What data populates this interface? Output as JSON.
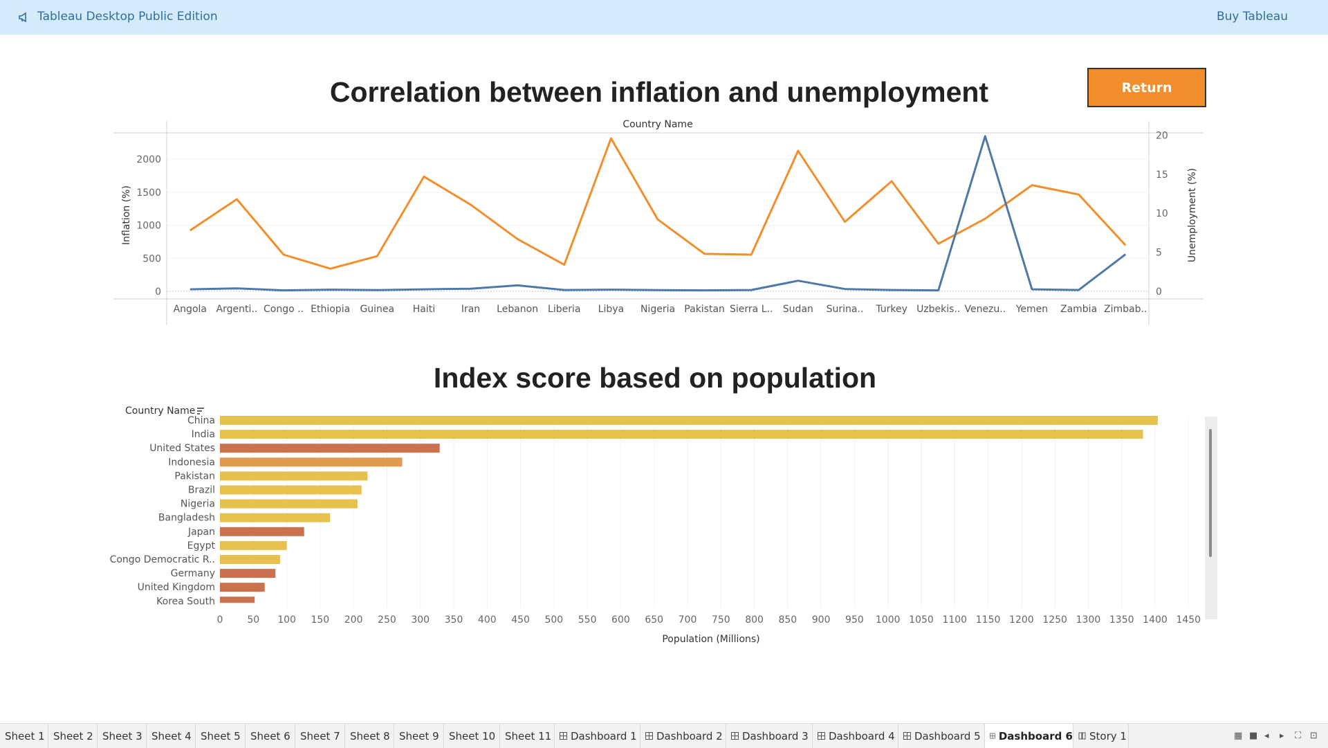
{
  "topbar": {
    "icon": "megaphone-icon",
    "title": "Tableau Desktop Public Edition",
    "buy_label": "Buy Tableau",
    "background": "#d4ebfc"
  },
  "return_button": {
    "label": "Return",
    "color": "#f28e2b"
  },
  "chart1": {
    "title": "Correlation between inflation and unemployment",
    "header": "Country Name"
  },
  "chart2": {
    "title": "Index score based on population",
    "header": "Country Name",
    "xlabel": "Population (Millions)"
  },
  "chart_data": [
    {
      "type": "line",
      "title": "Correlation between inflation and unemployment",
      "header": "Country Name",
      "categories": [
        "Angola",
        "Argenti..",
        "Congo ..",
        "Ethiopia",
        "Guinea",
        "Haiti",
        "Iran",
        "Lebanon",
        "Liberia",
        "Libya",
        "Nigeria",
        "Pakistan",
        "Sierra L..",
        "Sudan",
        "Surina..",
        "Turkey",
        "Uzbekis..",
        "Venezu..",
        "Yemen",
        "Zambia",
        "Zimbab.."
      ],
      "series": [
        {
          "name": "Unemployment (%)",
          "axis": "right",
          "color": "#f28e2b",
          "values": [
            7.8,
            11.8,
            4.7,
            2.9,
            4.5,
            14.7,
            11.1,
            6.7,
            3.4,
            19.6,
            9.2,
            4.8,
            4.7,
            18.0,
            8.9,
            14.1,
            6.1,
            9.3,
            13.6,
            12.4,
            5.9
          ]
        },
        {
          "name": "Inflation (%)",
          "axis": "left",
          "color": "#4e79a7",
          "values": [
            30,
            45,
            15,
            25,
            18,
            30,
            40,
            90,
            20,
            25,
            18,
            15,
            20,
            160,
            35,
            20,
            15,
            2350,
            30,
            20,
            560
          ]
        }
      ],
      "y_left": {
        "label": "Inflation (%)",
        "range": [
          0,
          2400
        ],
        "ticks": [
          0,
          500,
          1000,
          1500,
          2000
        ]
      },
      "y_right": {
        "label": "Unemployment (%)",
        "range": [
          0,
          20.3
        ],
        "ticks": [
          0,
          5,
          10,
          15,
          20
        ]
      },
      "grid": true
    },
    {
      "type": "bar",
      "orientation": "horizontal",
      "title": "Index score based on population",
      "header": "Country Name",
      "xlabel": "Population (Millions)",
      "xlim": [
        0,
        1470
      ],
      "xticks": [
        0,
        50,
        100,
        150,
        200,
        250,
        300,
        350,
        400,
        450,
        500,
        550,
        600,
        650,
        700,
        750,
        800,
        850,
        900,
        950,
        1000,
        1050,
        1100,
        1150,
        1200,
        1250,
        1300,
        1350,
        1400,
        1450
      ],
      "categories": [
        "China",
        "India",
        "United States",
        "Indonesia",
        "Pakistan",
        "Brazil",
        "Nigeria",
        "Bangladesh",
        "Japan",
        "Egypt",
        "Congo Democratic R..",
        "Germany",
        "United Kingdom",
        "Korea South"
      ],
      "values": [
        1404,
        1382,
        329,
        273,
        221,
        212,
        206,
        165,
        126,
        100,
        90,
        83,
        67,
        52
      ],
      "colors": [
        "#e6c14e",
        "#e6c14e",
        "#c9724d",
        "#e09b50",
        "#e6c14e",
        "#e6c14e",
        "#e6c14e",
        "#e6c14e",
        "#c9724d",
        "#e6c14e",
        "#e6c14e",
        "#c9724d",
        "#c9724d",
        "#c9724d"
      ]
    }
  ],
  "tabs": [
    {
      "label": "Sheet 1",
      "type": "sheet"
    },
    {
      "label": "Sheet 2",
      "type": "sheet"
    },
    {
      "label": "Sheet 3",
      "type": "sheet"
    },
    {
      "label": "Sheet 4",
      "type": "sheet"
    },
    {
      "label": "Sheet 5",
      "type": "sheet"
    },
    {
      "label": "Sheet 6",
      "type": "sheet"
    },
    {
      "label": "Sheet 7",
      "type": "sheet"
    },
    {
      "label": "Sheet 8",
      "type": "sheet"
    },
    {
      "label": "Sheet 9",
      "type": "sheet"
    },
    {
      "label": "Sheet 10",
      "type": "sheet"
    },
    {
      "label": "Sheet 11",
      "type": "sheet"
    },
    {
      "label": "Dashboard 1",
      "type": "dashboard"
    },
    {
      "label": "Dashboard 2",
      "type": "dashboard"
    },
    {
      "label": "Dashboard 3",
      "type": "dashboard"
    },
    {
      "label": "Dashboard 4",
      "type": "dashboard"
    },
    {
      "label": "Dashboard 5",
      "type": "dashboard"
    },
    {
      "label": "Dashboard 6",
      "type": "dashboard",
      "active": true
    },
    {
      "label": "Story 1",
      "type": "story"
    }
  ],
  "nav_icons": [
    "grid-view-icon",
    "filmstrip-icon",
    "prev-sheet-icon",
    "next-sheet-icon",
    "fullscreen-icon",
    "presentation-icon"
  ]
}
